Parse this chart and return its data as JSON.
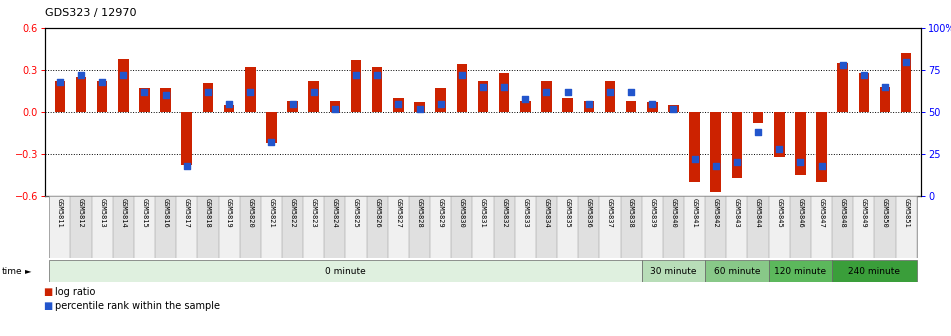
{
  "title": "GDS323 / 12970",
  "samples": [
    "GSM5811",
    "GSM5812",
    "GSM5813",
    "GSM5814",
    "GSM5815",
    "GSM5816",
    "GSM5817",
    "GSM5818",
    "GSM5819",
    "GSM5820",
    "GSM5821",
    "GSM5822",
    "GSM5823",
    "GSM5824",
    "GSM5825",
    "GSM5826",
    "GSM5827",
    "GSM5828",
    "GSM5829",
    "GSM5830",
    "GSM5831",
    "GSM5832",
    "GSM5833",
    "GSM5834",
    "GSM5835",
    "GSM5836",
    "GSM5837",
    "GSM5838",
    "GSM5839",
    "GSM5840",
    "GSM5841",
    "GSM5842",
    "GSM5843",
    "GSM5844",
    "GSM5845",
    "GSM5846",
    "GSM5847",
    "GSM5848",
    "GSM5849",
    "GSM5850",
    "GSM5851"
  ],
  "log_ratio": [
    0.22,
    0.25,
    0.22,
    0.38,
    0.17,
    0.17,
    -0.38,
    0.21,
    0.05,
    0.32,
    -0.22,
    0.08,
    0.22,
    0.08,
    0.37,
    0.32,
    0.1,
    0.07,
    0.17,
    0.34,
    0.22,
    0.28,
    0.08,
    0.22,
    0.1,
    0.08,
    0.22,
    0.08,
    0.07,
    0.05,
    -0.5,
    -0.57,
    -0.47,
    -0.08,
    -0.32,
    -0.45,
    -0.5,
    0.35,
    0.28,
    0.18,
    0.42
  ],
  "percentile": [
    68,
    72,
    68,
    72,
    62,
    60,
    18,
    62,
    55,
    62,
    32,
    55,
    62,
    52,
    72,
    72,
    55,
    52,
    55,
    72,
    65,
    65,
    58,
    62,
    62,
    55,
    62,
    62,
    55,
    52,
    22,
    18,
    20,
    38,
    28,
    20,
    18,
    78,
    72,
    65,
    80
  ],
  "time_groups": [
    {
      "label": "0 minute",
      "start": 0,
      "end": 28,
      "color": "#dff0df"
    },
    {
      "label": "30 minute",
      "start": 28,
      "end": 31,
      "color": "#b8ddb8"
    },
    {
      "label": "60 minute",
      "start": 31,
      "end": 34,
      "color": "#88c888"
    },
    {
      "label": "120 minute",
      "start": 34,
      "end": 37,
      "color": "#5cb85c"
    },
    {
      "label": "240 minute",
      "start": 37,
      "end": 41,
      "color": "#3a9e3a"
    }
  ],
  "bar_color": "#cc2200",
  "dot_color": "#2255cc",
  "ylim": [
    -0.6,
    0.6
  ],
  "yticks_left": [
    -0.6,
    -0.3,
    0.0,
    0.3,
    0.6
  ],
  "yticks_right": [
    0,
    25,
    50,
    75,
    100
  ],
  "hlines": [
    -0.3,
    0.0,
    0.3
  ],
  "bg_color": "#ffffff"
}
